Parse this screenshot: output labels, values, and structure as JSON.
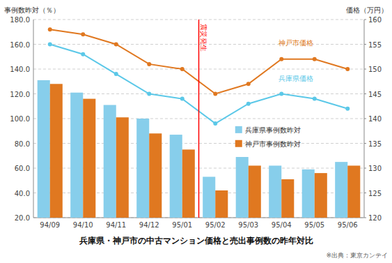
{
  "chart_data": {
    "type": "bar",
    "title": "兵庫県・神戸市の中古マンション価格と売出事例数の昨年対比",
    "ylabel": "事例数昨対（％）",
    "y2label": "価格（万円）",
    "categories": [
      "94/09",
      "94/10",
      "94/11",
      "94/12",
      "95/01",
      "95/02",
      "95/03",
      "95/04",
      "95/05",
      "95/06"
    ],
    "series": [
      {
        "name": "兵庫県事例数昨対",
        "type": "bar",
        "color": "#87CEEB",
        "values": [
          131,
          121,
          111,
          100,
          87,
          53,
          69,
          62,
          59,
          65
        ]
      },
      {
        "name": "神戸市事例数昨対",
        "type": "bar",
        "color": "#E07820",
        "values": [
          128,
          116,
          101,
          88,
          75,
          42,
          62,
          51,
          56,
          62
        ]
      },
      {
        "name": "神戸市価格",
        "type": "line",
        "axis": "y2",
        "marker": "circle",
        "color": "#E07820",
        "values": [
          158,
          157,
          155,
          151,
          150,
          145,
          147,
          152,
          152,
          150
        ]
      },
      {
        "name": "兵庫県価格",
        "type": "line",
        "axis": "y2",
        "marker": "circle",
        "color": "#5BC8E8",
        "values": [
          155,
          153,
          149,
          145,
          144,
          139,
          143,
          145,
          144,
          142
        ]
      }
    ],
    "ylim": [
      20.0,
      180.0
    ],
    "yticks": [
      {
        "value": 20.0,
        "label": "20.0"
      },
      {
        "value": 40.0,
        "label": "40.0"
      },
      {
        "value": 60.0,
        "label": "60.0"
      },
      {
        "value": 80.0,
        "label": "80.0"
      },
      {
        "value": 100.0,
        "label": "100.0"
      },
      {
        "value": 120.0,
        "label": "120.0"
      },
      {
        "value": 140.0,
        "label": "140.0"
      },
      {
        "value": 160.0,
        "label": "160.0"
      },
      {
        "value": 180.0,
        "label": "180.0"
      }
    ],
    "y2lim": [
      120,
      160
    ],
    "y2ticks": [
      120,
      125,
      130,
      135,
      140,
      145,
      150,
      155,
      160
    ],
    "grid": true,
    "annotations": [
      {
        "text": "震災発生",
        "x": 4.5,
        "color": "red"
      },
      {
        "text": "※出典：東京カンテイ"
      }
    ]
  }
}
